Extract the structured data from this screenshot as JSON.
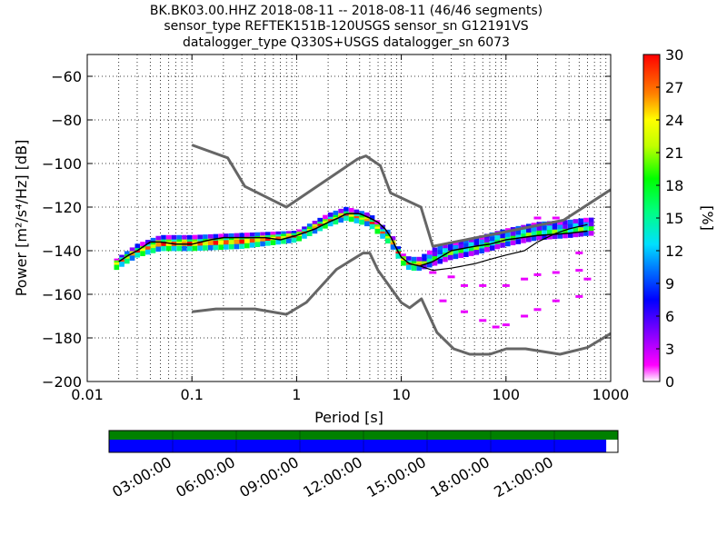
{
  "chart_data": {
    "type": "heatmap",
    "title_lines": [
      "BK.BK03.00.HHZ   2018-08-11 -- 2018-08-11  (46/46 segments)",
      "sensor_type REFTEK151B-120USGS sensor_sn G12191VS",
      "datalogger_type Q330S+USGS datalogger_sn 6073"
    ],
    "xlabel": "Period [s]",
    "ylabel": "Power [m²/s⁴/Hz] [dB]",
    "x_scale": "log",
    "xlim": [
      0.01,
      1000
    ],
    "ylim": [
      -200,
      -50
    ],
    "x_ticks": [
      {
        "v": 0.01,
        "label": "0.01"
      },
      {
        "v": 0.1,
        "label": "0.1"
      },
      {
        "v": 1,
        "label": "1"
      },
      {
        "v": 10,
        "label": "10"
      },
      {
        "v": 100,
        "label": "100"
      },
      {
        "v": 1000,
        "label": "1000"
      }
    ],
    "y_ticks": [
      {
        "v": -60,
        "label": "−60"
      },
      {
        "v": -80,
        "label": "−80"
      },
      {
        "v": -100,
        "label": "−100"
      },
      {
        "v": -120,
        "label": "−120"
      },
      {
        "v": -140,
        "label": "−140"
      },
      {
        "v": -160,
        "label": "−160"
      },
      {
        "v": -180,
        "label": "−180"
      },
      {
        "v": -200,
        "label": "−200"
      }
    ],
    "grid": true,
    "colorbar": {
      "label": "[%]",
      "range": [
        0,
        30
      ],
      "ticks": [
        "0",
        "3",
        "6",
        "9",
        "12",
        "15",
        "18",
        "21",
        "24",
        "27",
        "30"
      ]
    },
    "nhnm": {
      "period": [
        0.1,
        0.22,
        0.32,
        0.8,
        3.8,
        4.6,
        6.3,
        7.9,
        15.4,
        20,
        354.8,
        1000
      ],
      "db": [
        -91.5,
        -97.4,
        -110.5,
        -120,
        -98,
        -96.5,
        -101,
        -113.5,
        -120,
        -138,
        -126,
        -112
      ]
    },
    "nlnm": {
      "period": [
        0.1,
        0.17,
        0.4,
        0.8,
        1.24,
        2.4,
        4.3,
        5.0,
        6.0,
        10,
        12,
        15.6,
        21.9,
        31.6,
        45,
        70,
        101,
        154,
        328,
        600,
        1000
      ],
      "db": [
        -168,
        -166.7,
        -166.7,
        -169.2,
        -163.7,
        -148.6,
        -141.1,
        -141.1,
        -149,
        -163.8,
        -166.2,
        -162.1,
        -177.5,
        -185,
        -187.5,
        -187.5,
        -185,
        -185,
        -187.5,
        -184.4,
        -178
      ]
    },
    "mode_curve": {
      "period": [
        0.02,
        0.025,
        0.03,
        0.04,
        0.05,
        0.07,
        0.1,
        0.15,
        0.2,
        0.3,
        0.5,
        0.7,
        1,
        1.5,
        2,
        2.5,
        3,
        4,
        5,
        6,
        7,
        8,
        9,
        10,
        12,
        15,
        20,
        30,
        50,
        70,
        100,
        200,
        400,
        600
      ],
      "db": [
        -145,
        -142,
        -140,
        -136,
        -136,
        -137,
        -137,
        -135,
        -134,
        -134,
        -134,
        -135,
        -133,
        -130,
        -127,
        -125,
        -123,
        -123,
        -125,
        -127,
        -130,
        -134,
        -139,
        -143,
        -146,
        -147,
        -145,
        -140,
        -138,
        -137,
        -135,
        -133,
        -132,
        -131
      ]
    },
    "percentile_curve": {
      "period": [
        15,
        20,
        30,
        50,
        70,
        100,
        150,
        200,
        300,
        400,
        600
      ],
      "db": [
        -147,
        -149,
        -148,
        -146,
        -144,
        -142,
        -140,
        -136,
        -132,
        -130,
        -128
      ]
    },
    "density_bands": [
      {
        "period": [
          0.02,
          0.03,
          0.05,
          0.1,
          0.3,
          1,
          2,
          3,
          5,
          8,
          10,
          12,
          15,
          20,
          30,
          50,
          100,
          200,
          400,
          600
        ],
        "db": [
          -144,
          -138,
          -134,
          -134,
          -133,
          -132,
          -124,
          -121,
          -124,
          -133,
          -142,
          -144,
          -144,
          -140,
          -137,
          -135,
          -131,
          -128,
          -127,
          -126
        ],
        "pct": 6
      },
      {
        "period": [
          0.02,
          0.03,
          0.05,
          0.1,
          0.3,
          1,
          2,
          3,
          5,
          8,
          10,
          12,
          15,
          20,
          30,
          50,
          100,
          200,
          400,
          600
        ],
        "db": [
          -145,
          -140,
          -136,
          -136,
          -135,
          -133,
          -126,
          -123,
          -126,
          -135,
          -143,
          -146,
          -146,
          -142,
          -139,
          -137,
          -133,
          -130,
          -129,
          -128
        ],
        "pct": 18
      },
      {
        "period": [
          0.02,
          0.03,
          0.05,
          0.1,
          0.3,
          1,
          2,
          3,
          5,
          8,
          10,
          12,
          15,
          20,
          30,
          50,
          100,
          200,
          400,
          600
        ],
        "db": [
          -146,
          -141,
          -137,
          -137,
          -136,
          -134,
          -127,
          -124,
          -127,
          -136,
          -144,
          -147,
          -147,
          -144,
          -141,
          -139,
          -135,
          -132,
          -131,
          -130
        ],
        "pct": 26
      },
      {
        "period": [
          0.02,
          0.03,
          0.05,
          0.1,
          0.3,
          1,
          2,
          3,
          5,
          8,
          10,
          12,
          15,
          20,
          30,
          50,
          100,
          200,
          400,
          600
        ],
        "db": [
          -147,
          -142,
          -139,
          -139,
          -138,
          -135,
          -128,
          -125,
          -128,
          -137,
          -145,
          -148,
          -148,
          -146,
          -143,
          -141,
          -137,
          -134,
          -133,
          -132
        ],
        "pct": 14
      }
    ],
    "outlier_points": [
      {
        "p": 20,
        "db": -150
      },
      {
        "p": 30,
        "db": -152
      },
      {
        "p": 40,
        "db": -156
      },
      {
        "p": 60,
        "db": -156
      },
      {
        "p": 100,
        "db": -156
      },
      {
        "p": 150,
        "db": -153
      },
      {
        "p": 200,
        "db": -151
      },
      {
        "p": 300,
        "db": -150
      },
      {
        "p": 500,
        "db": -149
      },
      {
        "p": 25,
        "db": -163
      },
      {
        "p": 40,
        "db": -168
      },
      {
        "p": 60,
        "db": -172
      },
      {
        "p": 80,
        "db": -175
      },
      {
        "p": 100,
        "db": -174
      },
      {
        "p": 150,
        "db": -170
      },
      {
        "p": 200,
        "db": -167
      },
      {
        "p": 300,
        "db": -163
      },
      {
        "p": 500,
        "db": -161
      },
      {
        "p": 500,
        "db": -141
      },
      {
        "p": 600,
        "db": -153
      },
      {
        "p": 200,
        "db": -125
      },
      {
        "p": 300,
        "db": -125
      }
    ],
    "timeline": {
      "tick_labels": [
        "03:00:00",
        "06:00:00",
        "09:00:00",
        "12:00:00",
        "15:00:00",
        "18:00:00",
        "21:00:00"
      ],
      "coverage_fraction": 0.977,
      "colors": {
        "top": "#008000",
        "bottom": "#0000ff"
      }
    }
  }
}
